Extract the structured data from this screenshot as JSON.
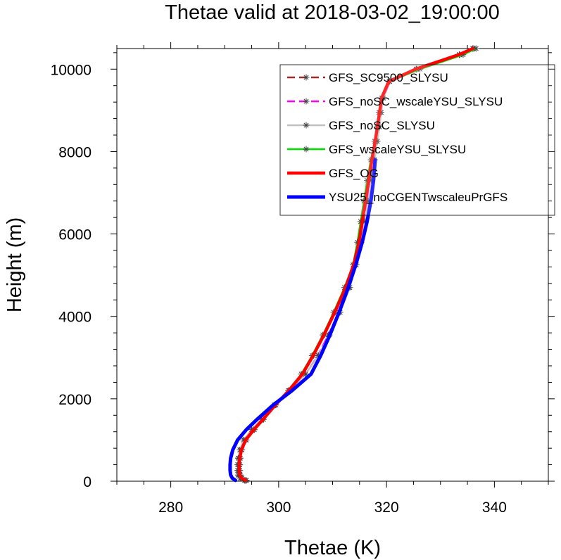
{
  "chart_data": {
    "type": "line",
    "title": "Thetae valid at 2018-03-02_19:00:00",
    "xlabel": "Thetae (K)",
    "ylabel": "Height (m)",
    "xlim": [
      270,
      350
    ],
    "ylim": [
      0,
      10500
    ],
    "xticks": [
      280,
      300,
      320,
      340
    ],
    "yticks": [
      0,
      2000,
      4000,
      6000,
      8000,
      10000
    ],
    "xticks_minor": [
      270,
      275,
      285,
      290,
      295,
      305,
      310,
      315,
      325,
      330,
      335,
      345,
      350
    ],
    "yticks_minor": [
      400,
      800,
      1200,
      1600,
      2400,
      2800,
      3200,
      3600,
      4400,
      4800,
      5200,
      5600,
      6400,
      6800,
      7200,
      7600,
      8400,
      8800,
      9200,
      9600,
      10400
    ],
    "grid": false,
    "legend_position": "top-right",
    "series": [
      {
        "name": "GFS_SC9500_SLYSU",
        "color": "#a52a2a",
        "dash": "dashed",
        "marker": "asterisk",
        "width": 2.5,
        "y": [
          20,
          75,
          150,
          260,
          400,
          560,
          760,
          1000,
          1250,
          1500,
          1850,
          2200,
          2600,
          3050,
          3550,
          4100,
          4700,
          5250,
          5800,
          6300,
          6800,
          7300,
          7800,
          8250,
          8600,
          8950,
          9300,
          9700,
          10000,
          10350,
          10500
        ],
        "x": [
          294.0,
          293.2,
          292.9,
          292.8,
          292.8,
          292.9,
          293.2,
          294.0,
          295.5,
          297.2,
          299.5,
          302.0,
          304.5,
          306.5,
          308.5,
          310.5,
          312.5,
          314.0,
          315.0,
          315.6,
          316.2,
          316.8,
          317.4,
          318.0,
          318.4,
          318.8,
          319.2,
          320.5,
          325.5,
          333.5,
          336.0
        ]
      },
      {
        "name": "GFS_noSC_wscaleYSU_SLYSU",
        "color": "#ff00ff",
        "dash": "dashed",
        "marker": "asterisk",
        "width": 2.5,
        "y": [
          20,
          75,
          150,
          260,
          400,
          560,
          760,
          1000,
          1250,
          1500,
          1850,
          2200,
          2600,
          3050,
          3550,
          4100,
          4700,
          5250,
          5800,
          6300,
          6800,
          7300,
          7800,
          8250,
          8600,
          8950,
          9300,
          9700,
          10000,
          10350,
          10500
        ],
        "x": [
          293.8,
          293.0,
          292.6,
          292.5,
          292.5,
          292.6,
          292.9,
          293.6,
          295.0,
          296.8,
          299.2,
          302.0,
          305.0,
          307.3,
          309.2,
          311.2,
          313.0,
          314.2,
          315.2,
          315.9,
          316.5,
          317.1,
          317.7,
          318.2,
          318.6,
          319.0,
          319.4,
          320.6,
          325.6,
          333.6,
          336.2
        ]
      },
      {
        "name": "GFS_noSC_SLYSU",
        "color": "#c0c0c0",
        "dash": "solid",
        "marker": "asterisk",
        "width": 2.5,
        "y": [
          20,
          75,
          150,
          260,
          400,
          560,
          760,
          1000,
          1250,
          1500,
          1850,
          2200,
          2600,
          3050,
          3550,
          4100,
          4700,
          5250,
          5800,
          6300,
          6800,
          7300,
          7800,
          8250,
          8600,
          8950,
          9300,
          9700,
          10000,
          10350,
          10500
        ],
        "x": [
          293.7,
          292.9,
          292.5,
          292.4,
          292.4,
          292.5,
          292.8,
          293.5,
          295.0,
          296.8,
          299.2,
          302.0,
          305.0,
          307.4,
          309.4,
          311.4,
          313.2,
          314.4,
          315.3,
          316.0,
          316.6,
          317.2,
          317.8,
          318.3,
          318.7,
          319.0,
          319.4,
          320.5,
          325.5,
          333.5,
          336.0
        ]
      },
      {
        "name": "GFS_wscaleYSU_SLYSU",
        "color": "#00dd00",
        "dash": "solid",
        "marker": "asterisk",
        "width": 2.5,
        "y": [
          20,
          75,
          150,
          260,
          400,
          560,
          760,
          1000,
          1250,
          1500,
          1850,
          2200,
          2600,
          3050,
          3550,
          4100,
          4700,
          5250,
          5800,
          6300,
          6800,
          7300,
          7800,
          8250,
          8600,
          8950,
          9300,
          9700,
          10000,
          10350,
          10500
        ],
        "x": [
          294.0,
          293.2,
          292.8,
          292.7,
          292.7,
          292.8,
          293.1,
          293.9,
          295.4,
          297.1,
          299.4,
          301.8,
          304.2,
          306.2,
          308.2,
          310.2,
          312.2,
          313.8,
          314.6,
          315.2,
          315.8,
          316.4,
          317.1,
          317.8,
          318.2,
          318.6,
          319.1,
          320.5,
          326.2,
          334.2,
          336.6
        ]
      },
      {
        "name": "GFS_OG",
        "color": "#ff0000",
        "dash": "solid",
        "marker": "none",
        "width": 4.5,
        "y": [
          20,
          75,
          150,
          260,
          400,
          560,
          760,
          1000,
          1250,
          1500,
          1850,
          2200,
          2600,
          3050,
          3550,
          4100,
          4700,
          5250,
          5800,
          6300,
          6800,
          7300,
          7800,
          8250,
          8600,
          8950,
          9300,
          9700,
          10000,
          10350,
          10500
        ],
        "x": [
          293.9,
          293.1,
          292.8,
          292.7,
          292.7,
          292.8,
          293.1,
          293.9,
          295.4,
          297.1,
          299.4,
          301.9,
          304.4,
          306.4,
          308.4,
          310.4,
          312.4,
          313.9,
          314.9,
          315.5,
          316.1,
          316.7,
          317.3,
          317.9,
          318.3,
          318.7,
          319.1,
          320.4,
          325.4,
          333.4,
          336.0
        ]
      },
      {
        "name": "YSU25_noCGENTwscaleuPrGFS",
        "color": "#0000ff",
        "dash": "solid",
        "marker": "none",
        "width": 5,
        "y": [
          20,
          75,
          150,
          260,
          400,
          560,
          760,
          1000,
          1250,
          1500,
          1850,
          2200,
          2600,
          3050,
          3550,
          4100,
          4700,
          5250,
          5800,
          6300,
          6800,
          7300,
          7800
        ],
        "x": [
          292.0,
          291.4,
          291.1,
          291.0,
          291.0,
          291.1,
          291.5,
          292.4,
          294.0,
          296.0,
          299.0,
          302.5,
          306.0,
          307.8,
          309.5,
          311.2,
          312.9,
          314.3,
          315.5,
          316.4,
          317.1,
          317.6,
          317.9
        ]
      }
    ]
  }
}
